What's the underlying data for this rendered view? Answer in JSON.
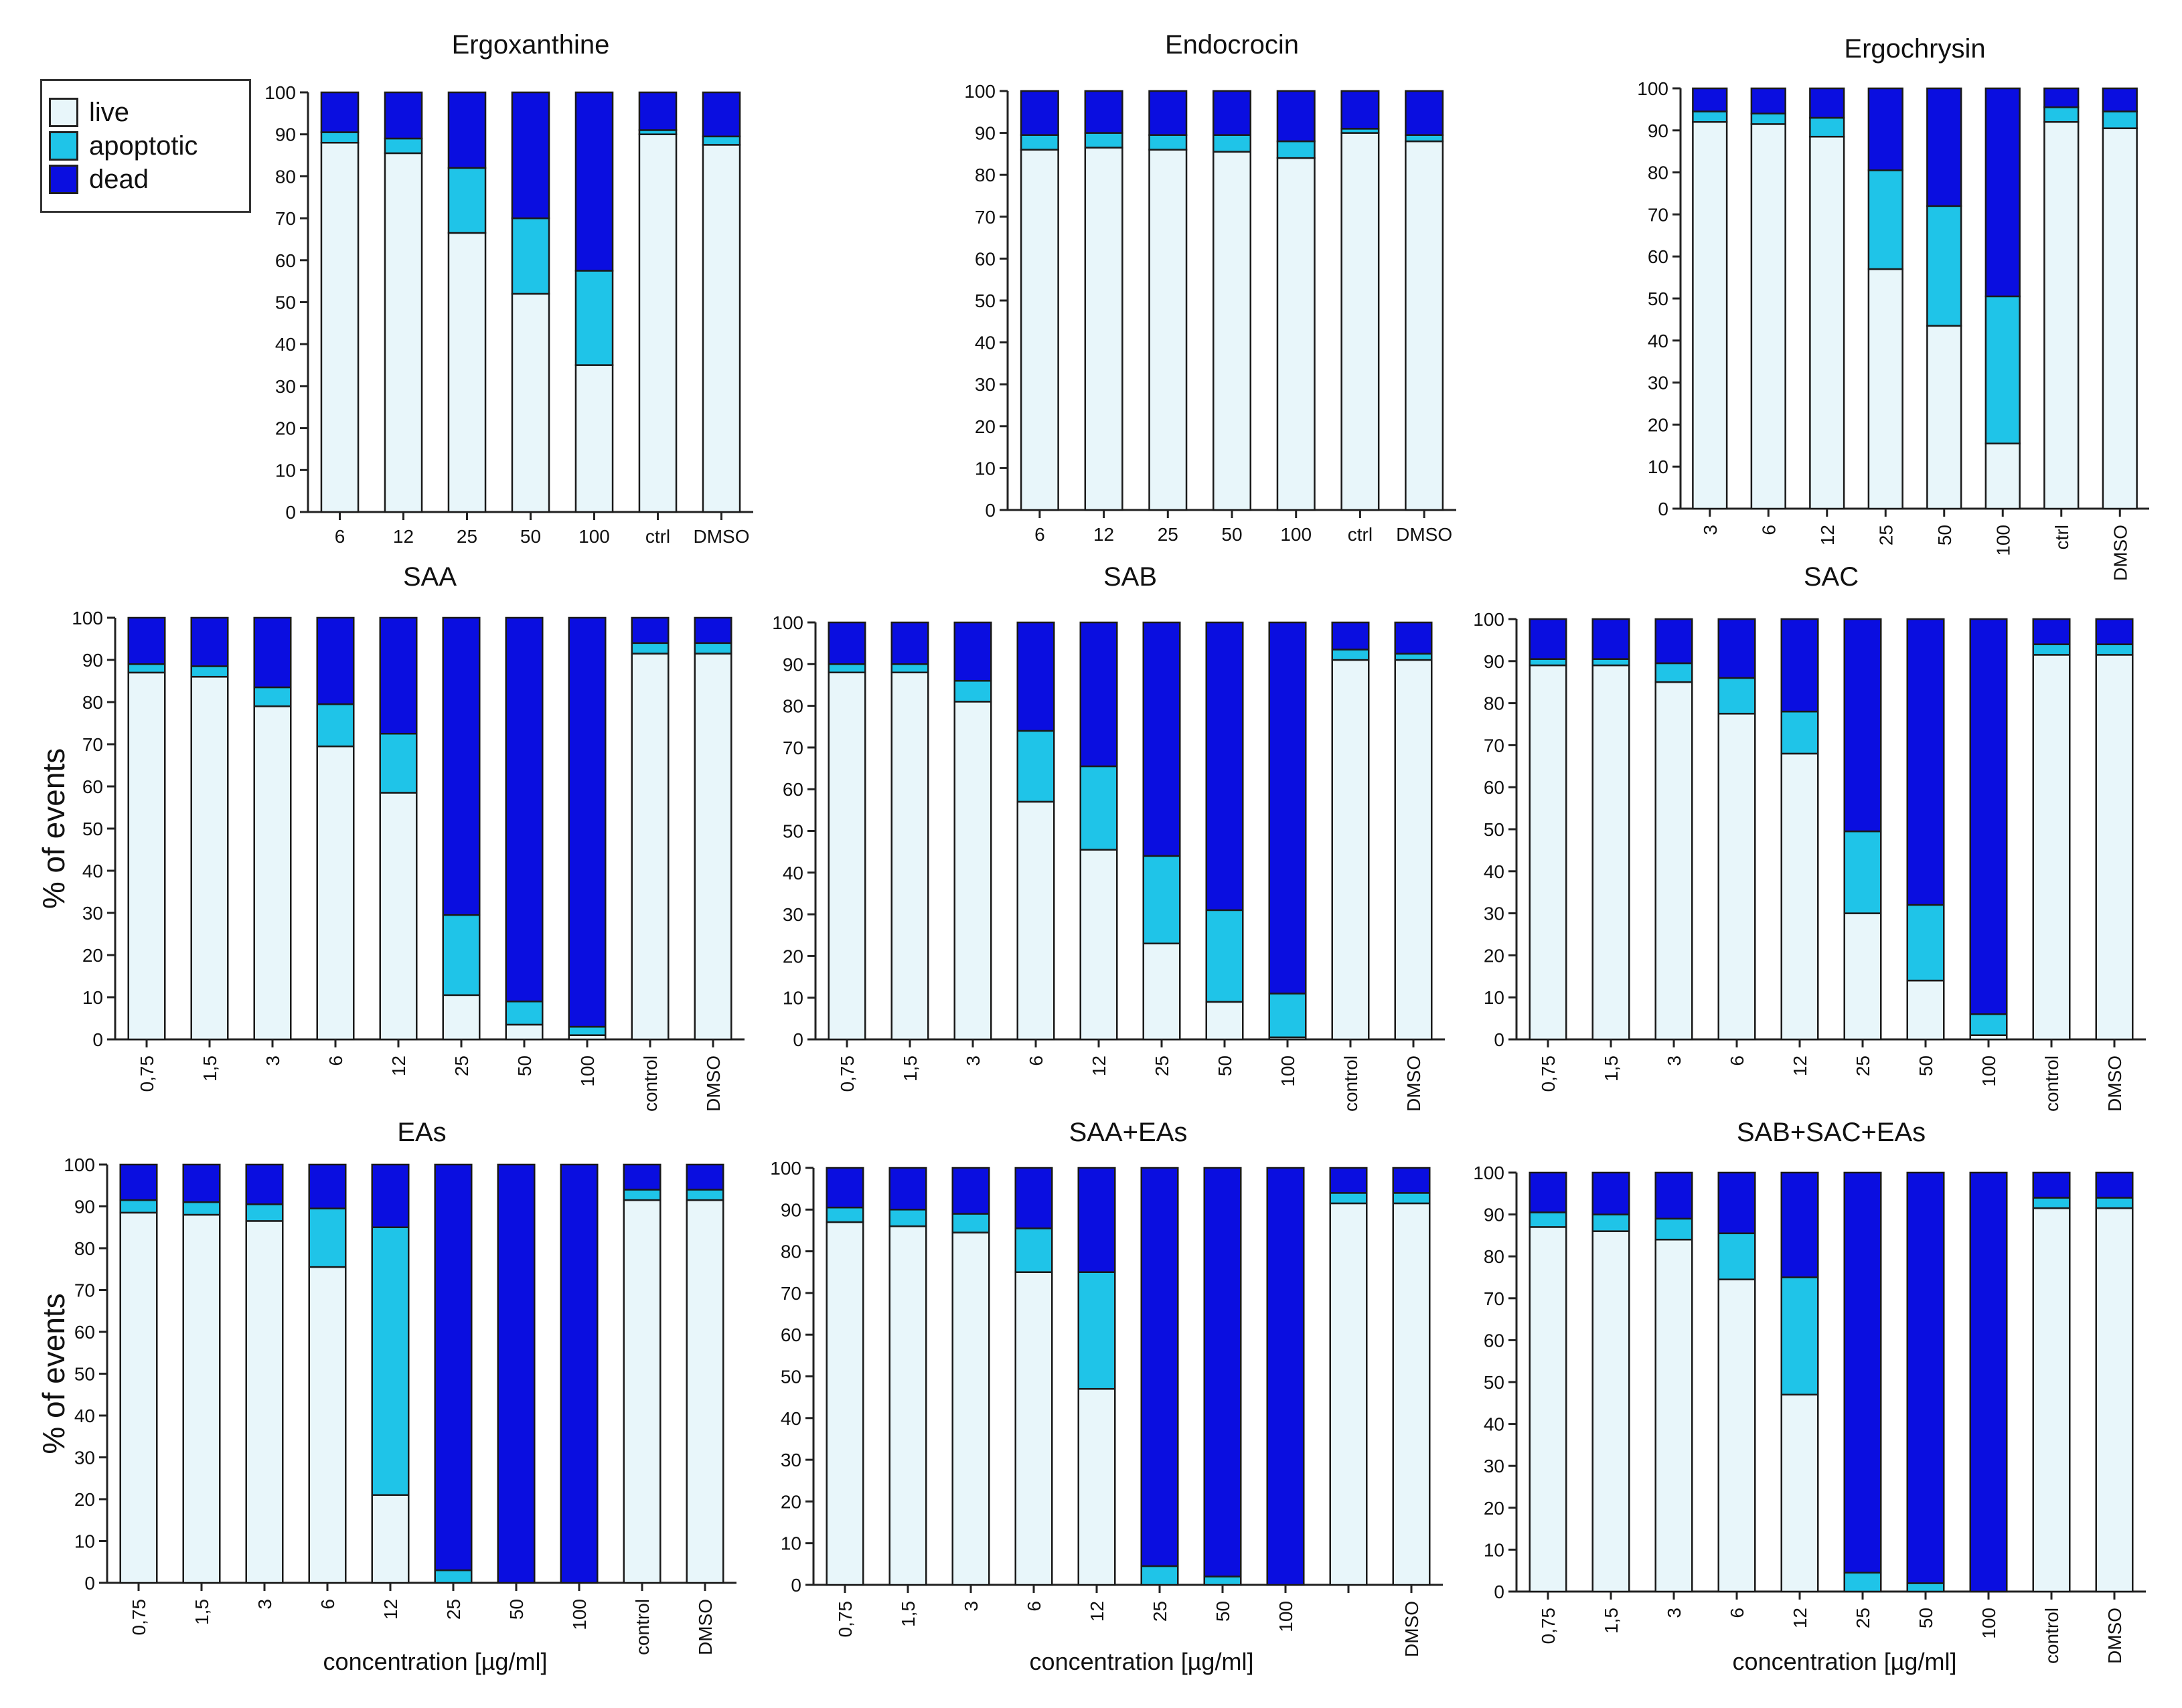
{
  "colors": {
    "live": "#e8f6fa",
    "apoptotic": "#1fc4e8",
    "dead": "#0a0ee0",
    "axis": "#222222",
    "edge": "#1a1a1a"
  },
  "legend": {
    "items": [
      {
        "key": "live",
        "label": "live"
      },
      {
        "key": "apoptotic",
        "label": "apoptotic"
      },
      {
        "key": "dead",
        "label": "dead"
      }
    ]
  },
  "shared_ylabel": "% of events",
  "shared_xlabel": "concentration [µg/ml]",
  "chart_data": [
    {
      "id": "ergoxanthine",
      "type": "bar",
      "stacked": true,
      "title": "Ergoxanthine",
      "categories": [
        "6",
        "12",
        "25",
        "50",
        "100",
        "ctrl",
        "DMSO"
      ],
      "ylim": [
        0,
        100
      ],
      "yticks": [
        0,
        10,
        20,
        30,
        40,
        50,
        60,
        70,
        80,
        90,
        100
      ],
      "series": [
        {
          "name": "live",
          "values": [
            88,
            85.5,
            66.5,
            52,
            35,
            90,
            87.5
          ]
        },
        {
          "name": "apoptotic",
          "values": [
            2.5,
            3.5,
            15.5,
            18,
            22.5,
            1,
            2
          ]
        },
        {
          "name": "dead",
          "values": [
            9.5,
            11,
            18,
            30,
            42.5,
            9,
            10.5
          ]
        }
      ]
    },
    {
      "id": "endocrocin",
      "type": "bar",
      "stacked": true,
      "title": "Endocrocin",
      "categories": [
        "6",
        "12",
        "25",
        "50",
        "100",
        "ctrl",
        "DMSO"
      ],
      "ylim": [
        0,
        100
      ],
      "yticks": [
        0,
        10,
        20,
        30,
        40,
        50,
        60,
        70,
        80,
        90,
        100
      ],
      "series": [
        {
          "name": "live",
          "values": [
            86,
            86.5,
            86,
            85.5,
            84,
            90,
            88
          ]
        },
        {
          "name": "apoptotic",
          "values": [
            3.5,
            3.5,
            3.5,
            4,
            4,
            1,
            1.5
          ]
        },
        {
          "name": "dead",
          "values": [
            10.5,
            10,
            10.5,
            10.5,
            12,
            9,
            10.5
          ]
        }
      ]
    },
    {
      "id": "ergochrysin",
      "type": "bar",
      "stacked": true,
      "title": "Ergochrysin",
      "categories": [
        "3",
        "6",
        "12",
        "25",
        "50",
        "100",
        "ctrl",
        "DMSO"
      ],
      "ylim": [
        0,
        100
      ],
      "yticks": [
        0,
        10,
        20,
        30,
        40,
        50,
        60,
        70,
        80,
        90,
        100
      ],
      "series": [
        {
          "name": "live",
          "values": [
            92,
            91.5,
            88.5,
            57,
            43.5,
            15.5,
            92,
            90.5
          ]
        },
        {
          "name": "apoptotic",
          "values": [
            2.5,
            2.5,
            4.5,
            23.5,
            28.5,
            35,
            3.5,
            4
          ]
        },
        {
          "name": "dead",
          "values": [
            5.5,
            6,
            7,
            19.5,
            28,
            49.5,
            4.5,
            5.5
          ]
        }
      ]
    },
    {
      "id": "saa",
      "type": "bar",
      "stacked": true,
      "title": "SAA",
      "ylabel": "% of events",
      "categories": [
        "0,75",
        "1,5",
        "3",
        "6",
        "12",
        "25",
        "50",
        "100",
        "control",
        "DMSO"
      ],
      "ylim": [
        0,
        100
      ],
      "yticks": [
        0,
        10,
        20,
        30,
        40,
        50,
        60,
        70,
        80,
        90,
        100
      ],
      "series": [
        {
          "name": "live",
          "values": [
            87,
            86,
            79,
            69.5,
            58.5,
            10.5,
            3.5,
            1,
            91.5,
            91.5
          ]
        },
        {
          "name": "apoptotic",
          "values": [
            2,
            2.5,
            4.5,
            10,
            14,
            19,
            5.5,
            2,
            2.5,
            2.5
          ]
        },
        {
          "name": "dead",
          "values": [
            11,
            11.5,
            16.5,
            20.5,
            27.5,
            70.5,
            91,
            97,
            6,
            6
          ]
        }
      ]
    },
    {
      "id": "sab",
      "type": "bar",
      "stacked": true,
      "title": "SAB",
      "categories": [
        "0,75",
        "1,5",
        "3",
        "6",
        "12",
        "25",
        "50",
        "100",
        "control",
        "DMSO"
      ],
      "ylim": [
        0,
        100
      ],
      "yticks": [
        0,
        10,
        20,
        30,
        40,
        50,
        60,
        70,
        80,
        90,
        100
      ],
      "series": [
        {
          "name": "live",
          "values": [
            88,
            88,
            81,
            57,
            45.5,
            23,
            9,
            0.5,
            91,
            91
          ]
        },
        {
          "name": "apoptotic",
          "values": [
            2,
            2,
            5,
            17,
            20,
            21,
            22,
            10.5,
            2.5,
            1.5
          ]
        },
        {
          "name": "dead",
          "values": [
            10,
            10,
            14,
            26,
            34.5,
            56,
            69,
            89,
            6.5,
            7.5
          ]
        }
      ]
    },
    {
      "id": "sac",
      "type": "bar",
      "stacked": true,
      "title": "SAC",
      "categories": [
        "0,75",
        "1,5",
        "3",
        "6",
        "12",
        "25",
        "50",
        "100",
        "control",
        "DMSO"
      ],
      "ylim": [
        0,
        100
      ],
      "yticks": [
        0,
        10,
        20,
        30,
        40,
        50,
        60,
        70,
        80,
        90,
        100
      ],
      "series": [
        {
          "name": "live",
          "values": [
            89,
            89,
            85,
            77.5,
            68,
            30,
            14,
            1,
            91.5,
            91.5
          ]
        },
        {
          "name": "apoptotic",
          "values": [
            1.5,
            1.5,
            4.5,
            8.5,
            10,
            19.5,
            18,
            5,
            2.5,
            2.5
          ]
        },
        {
          "name": "dead",
          "values": [
            9.5,
            9.5,
            10.5,
            14,
            22,
            50.5,
            68,
            94,
            6,
            6
          ]
        }
      ]
    },
    {
      "id": "eas",
      "type": "bar",
      "stacked": true,
      "title": "EAs",
      "ylabel": "% of events",
      "xlabel": "concentration [µg/ml]",
      "categories": [
        "0,75",
        "1,5",
        "3",
        "6",
        "12",
        "25",
        "50",
        "100",
        "control",
        "DMSO"
      ],
      "ylim": [
        0,
        100
      ],
      "yticks": [
        0,
        10,
        20,
        30,
        40,
        50,
        60,
        70,
        80,
        90,
        100
      ],
      "series": [
        {
          "name": "live",
          "values": [
            88.5,
            88,
            86.5,
            75.5,
            21,
            0,
            0,
            0,
            91.5,
            91.5
          ]
        },
        {
          "name": "apoptotic",
          "values": [
            3,
            3,
            4,
            14,
            64,
            3,
            0,
            0,
            2.5,
            2.5
          ]
        },
        {
          "name": "dead",
          "values": [
            8.5,
            9,
            9.5,
            10.5,
            15,
            97,
            100,
            100,
            6,
            6
          ]
        }
      ]
    },
    {
      "id": "saa-eas",
      "type": "bar",
      "stacked": true,
      "title": "SAA+EAs",
      "xlabel": "concentration [µg/ml]",
      "categories": [
        "0,75",
        "1,5",
        "3",
        "6",
        "12",
        "25",
        "50",
        "100",
        "",
        "DMSO"
      ],
      "ylim": [
        0,
        100
      ],
      "yticks": [
        0,
        10,
        20,
        30,
        40,
        50,
        60,
        70,
        80,
        90,
        100
      ],
      "series": [
        {
          "name": "live",
          "values": [
            87,
            86,
            84.5,
            75,
            47,
            0,
            0,
            0,
            91.5,
            91.5
          ]
        },
        {
          "name": "apoptotic",
          "values": [
            3.5,
            4,
            4.5,
            10.5,
            28,
            4.5,
            2,
            0,
            2.5,
            2.5
          ]
        },
        {
          "name": "dead",
          "values": [
            9.5,
            10,
            11,
            14.5,
            25,
            95.5,
            98,
            100,
            6,
            6
          ]
        }
      ]
    },
    {
      "id": "sab-sac-eas",
      "type": "bar",
      "stacked": true,
      "title": "SAB+SAC+EAs",
      "xlabel": "concentration [µg/ml]",
      "categories": [
        "0,75",
        "1,5",
        "3",
        "6",
        "12",
        "25",
        "50",
        "100",
        "control",
        "DMSO"
      ],
      "ylim": [
        0,
        100
      ],
      "yticks": [
        0,
        10,
        20,
        30,
        40,
        50,
        60,
        70,
        80,
        90,
        100
      ],
      "series": [
        {
          "name": "live",
          "values": [
            87,
            86,
            84,
            74.5,
            47,
            0,
            0,
            0,
            91.5,
            91.5
          ]
        },
        {
          "name": "apoptotic",
          "values": [
            3.5,
            4,
            5,
            11,
            28,
            4.5,
            2,
            0,
            2.5,
            2.5
          ]
        },
        {
          "name": "dead",
          "values": [
            9.5,
            10,
            11,
            14.5,
            25,
            95.5,
            98,
            100,
            6,
            6
          ]
        }
      ]
    }
  ]
}
